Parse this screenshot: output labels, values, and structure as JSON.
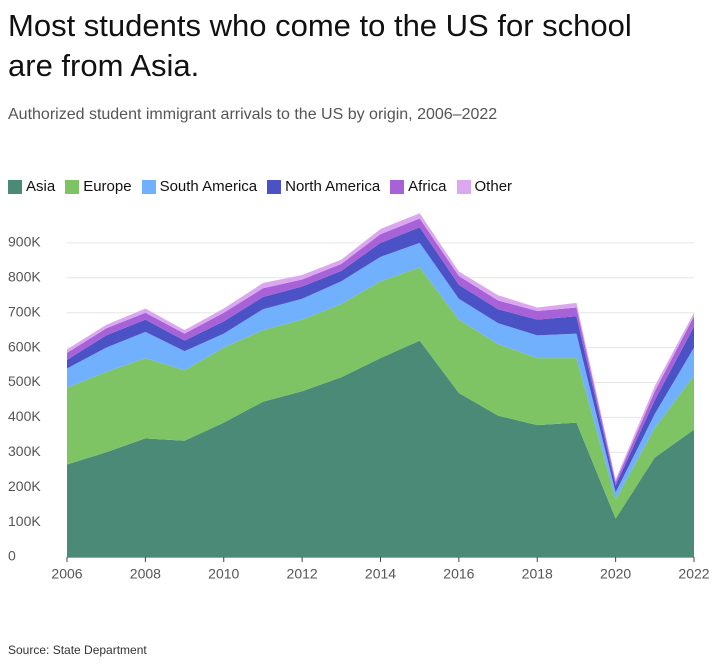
{
  "chart_data": {
    "type": "stacked_area",
    "title": "Most students who come to the US for school are from Asia.",
    "subtitle": "Authorized student immigrant arrivals to the US by origin, 2006–2022",
    "source": "Source: State Department",
    "x": [
      2006,
      2007,
      2008,
      2009,
      2010,
      2011,
      2012,
      2013,
      2014,
      2015,
      2016,
      2017,
      2018,
      2019,
      2020,
      2021,
      2022
    ],
    "series": [
      {
        "name": "Asia",
        "color": "#4b8a77",
        "values": [
          265000,
          300000,
          340000,
          333000,
          385000,
          445000,
          475000,
          515000,
          570000,
          620000,
          470000,
          405000,
          378000,
          385000,
          110000,
          285000,
          365000
        ]
      },
      {
        "name": "Europe",
        "color": "#7fc464",
        "values": [
          220000,
          230000,
          230000,
          202000,
          215000,
          205000,
          205000,
          210000,
          220000,
          210000,
          210000,
          205000,
          192000,
          185000,
          55000,
          85000,
          155000
        ]
      },
      {
        "name": "South America",
        "color": "#70b0fc",
        "values": [
          55000,
          70000,
          75000,
          55000,
          40000,
          60000,
          60000,
          65000,
          70000,
          70000,
          60000,
          60000,
          65000,
          70000,
          20000,
          40000,
          80000
        ]
      },
      {
        "name": "North America",
        "color": "#4a52c6",
        "values": [
          25000,
          35000,
          35000,
          30000,
          35000,
          35000,
          35000,
          30000,
          40000,
          45000,
          40000,
          40000,
          45000,
          50000,
          20000,
          40000,
          60000
        ]
      },
      {
        "name": "Africa",
        "color": "#a862d8",
        "values": [
          20000,
          20000,
          20000,
          20000,
          25000,
          25000,
          20000,
          20000,
          25000,
          25000,
          25000,
          25000,
          25000,
          25000,
          10000,
          25000,
          30000
        ]
      },
      {
        "name": "Other",
        "color": "#dba8ef",
        "values": [
          10000,
          10000,
          12000,
          10000,
          12000,
          15000,
          13000,
          12000,
          15000,
          15000,
          13000,
          15000,
          10000,
          13000,
          7000,
          15000,
          10000
        ]
      }
    ],
    "xlim": [
      2006,
      2022
    ],
    "xticks": [
      2006,
      2008,
      2010,
      2012,
      2014,
      2016,
      2018,
      2020,
      2022
    ],
    "ylim": [
      0,
      1000000
    ],
    "yticks": [
      0,
      {
        "value": 100000,
        "label": "100K"
      },
      {
        "value": 200000,
        "label": "200K"
      },
      {
        "value": 300000,
        "label": "300K"
      },
      {
        "value": 400000,
        "label": "400K"
      },
      {
        "value": 500000,
        "label": "500K"
      },
      {
        "value": 600000,
        "label": "600K"
      },
      {
        "value": 700000,
        "label": "700K"
      },
      {
        "value": 800000,
        "label": "800K"
      },
      {
        "value": 900000,
        "label": "900K"
      }
    ],
    "grid": true
  }
}
